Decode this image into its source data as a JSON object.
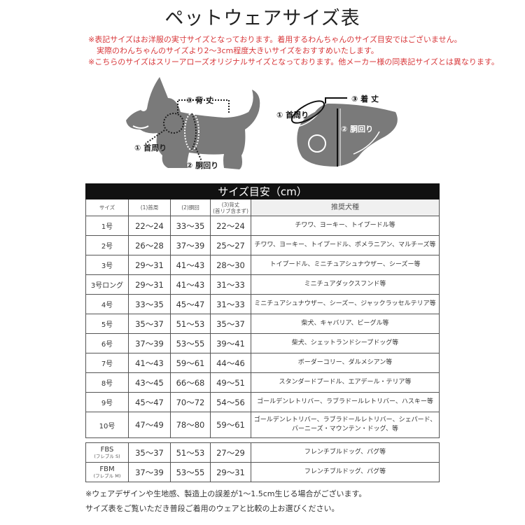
{
  "title": "ペットウェアサイズ表",
  "notes": [
    "※表記サイズはお洋服の実寸サイズとなっております。着用するわんちゃんのサイズ目安ではございません。",
    "実際のわんちゃんのサイズより2～3cm程度大きいサイズをおすすめいたします。",
    "※こちらのサイズはスリーアローズオリジナルサイズとなっております。他メーカー様の同表記サイズとは異なります。"
  ],
  "illustration": {
    "dog_labels": {
      "back_length": "③ 背 丈",
      "neck": "① 首周り",
      "chest": "② 胴回り"
    },
    "wear_labels": {
      "length": "③ 着 丈",
      "neck": "① 首周り",
      "chest": "② 胴回り"
    }
  },
  "table": {
    "caption": "サイズ目安（cm）",
    "headers": [
      "サイズ",
      "(1)首周",
      "(2)胴回",
      "(3)背丈",
      "推奨犬種"
    ],
    "header_sub": "(首リブ含まず)",
    "rows": [
      {
        "size": "1号",
        "neck": "22～24",
        "chest": "33～35",
        "back": "22～24",
        "breeds": [
          "チワワ、ヨーキー、トイプードル等"
        ]
      },
      {
        "size": "2号",
        "neck": "26～28",
        "chest": "37～39",
        "back": "25～27",
        "breeds": [
          "チワワ、ヨーキー、トイプードル、ポメラニアン、マルチーズ等"
        ]
      },
      {
        "size": "3号",
        "neck": "29～31",
        "chest": "41～43",
        "back": "28～30",
        "breeds": [
          "トイプードル、ミニチュアシュナウザー、シーズー等"
        ]
      },
      {
        "size": "3号ロング",
        "neck": "29～31",
        "chest": "41～43",
        "back": "31～33",
        "breeds": [
          "ミニチュアダックスフンド等"
        ]
      },
      {
        "size": "4号",
        "neck": "33～35",
        "chest": "45～47",
        "back": "31～33",
        "breeds": [
          "ミニチュアシュナウザー、シーズー、ジャックラッセルテリア等"
        ]
      },
      {
        "size": "5号",
        "neck": "35～37",
        "chest": "51～53",
        "back": "35～37",
        "breeds": [
          "柴犬、キャバリア、ビーグル等"
        ]
      },
      {
        "size": "6号",
        "neck": "37～39",
        "chest": "53～55",
        "back": "39～41",
        "breeds": [
          "柴犬、シェットランドシープドッグ等"
        ]
      },
      {
        "size": "7号",
        "neck": "41～43",
        "chest": "59～61",
        "back": "44～46",
        "breeds": [
          "ボーダーコリー、ダルメシアン等"
        ]
      },
      {
        "size": "8号",
        "neck": "43～45",
        "chest": "66～68",
        "back": "49～51",
        "breeds": [
          "スタンダードプードル、エアデール・テリア等"
        ]
      },
      {
        "size": "9号",
        "neck": "45～47",
        "chest": "70～72",
        "back": "54～56",
        "breeds": [
          "ゴールデンレトリバー、ラブラドールレトリバー、ハスキー等"
        ]
      },
      {
        "size": "10号",
        "neck": "47～49",
        "chest": "78～80",
        "back": "59～61",
        "breeds": [
          "ゴールデンレトリバー、ラブラドールレトリバー、シェパード、",
          "バーニーズ・マウンテン・ドッグ、等"
        ]
      }
    ],
    "fb_rows": [
      {
        "size": "FBS",
        "size_sub": "(フレブル S)",
        "neck": "35～37",
        "chest": "51～53",
        "back": "27～29",
        "breeds": [
          "フレンチブルドッグ、パグ等"
        ]
      },
      {
        "size": "FBM",
        "size_sub": "(フレブル M)",
        "neck": "37～39",
        "chest": "53～55",
        "back": "29～31",
        "breeds": [
          "フレンチブルドッグ、パグ等"
        ]
      }
    ]
  },
  "footer": [
    "※ウェアデザインや生地感、製造上の誤差が1～1.5cm生じる場合がございます。",
    "サイズ表をご覧いただき普段ご着用のウェアと比較の上お選びください。"
  ],
  "colors": {
    "note_red": "#d8373a",
    "header_black": "#111111",
    "illustration_gray": "#7a7a7a"
  }
}
